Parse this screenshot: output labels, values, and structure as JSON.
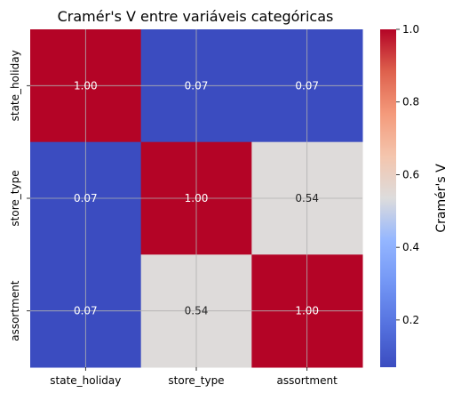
{
  "chart_data": {
    "type": "heatmap",
    "title": "Cramér's V entre variáveis categóricas",
    "x_categories": [
      "state_holiday",
      "store_type",
      "assortment"
    ],
    "y_categories": [
      "state_holiday",
      "store_type",
      "assortment"
    ],
    "values": [
      [
        1.0,
        0.07,
        0.07
      ],
      [
        0.07,
        1.0,
        0.54
      ],
      [
        0.07,
        0.54,
        1.0
      ]
    ],
    "value_labels": [
      [
        "1.00",
        "0.07",
        "0.07"
      ],
      [
        "0.07",
        "1.00",
        "0.54"
      ],
      [
        "0.07",
        "0.54",
        "1.00"
      ]
    ],
    "colormap": "coolwarm",
    "vmin": 0.07,
    "vmax": 1.0,
    "colorbar": {
      "label": "Cramér's V",
      "ticks": [
        0.2,
        0.4,
        0.6,
        0.8,
        1.0
      ],
      "tick_labels": [
        "0.2",
        "0.4",
        "0.6",
        "0.8",
        "1.0"
      ],
      "placement": "right"
    },
    "grid": true,
    "colors": {
      "low": "#3b4cc0",
      "mid": "#dddcdc",
      "high": "#b40426"
    }
  }
}
